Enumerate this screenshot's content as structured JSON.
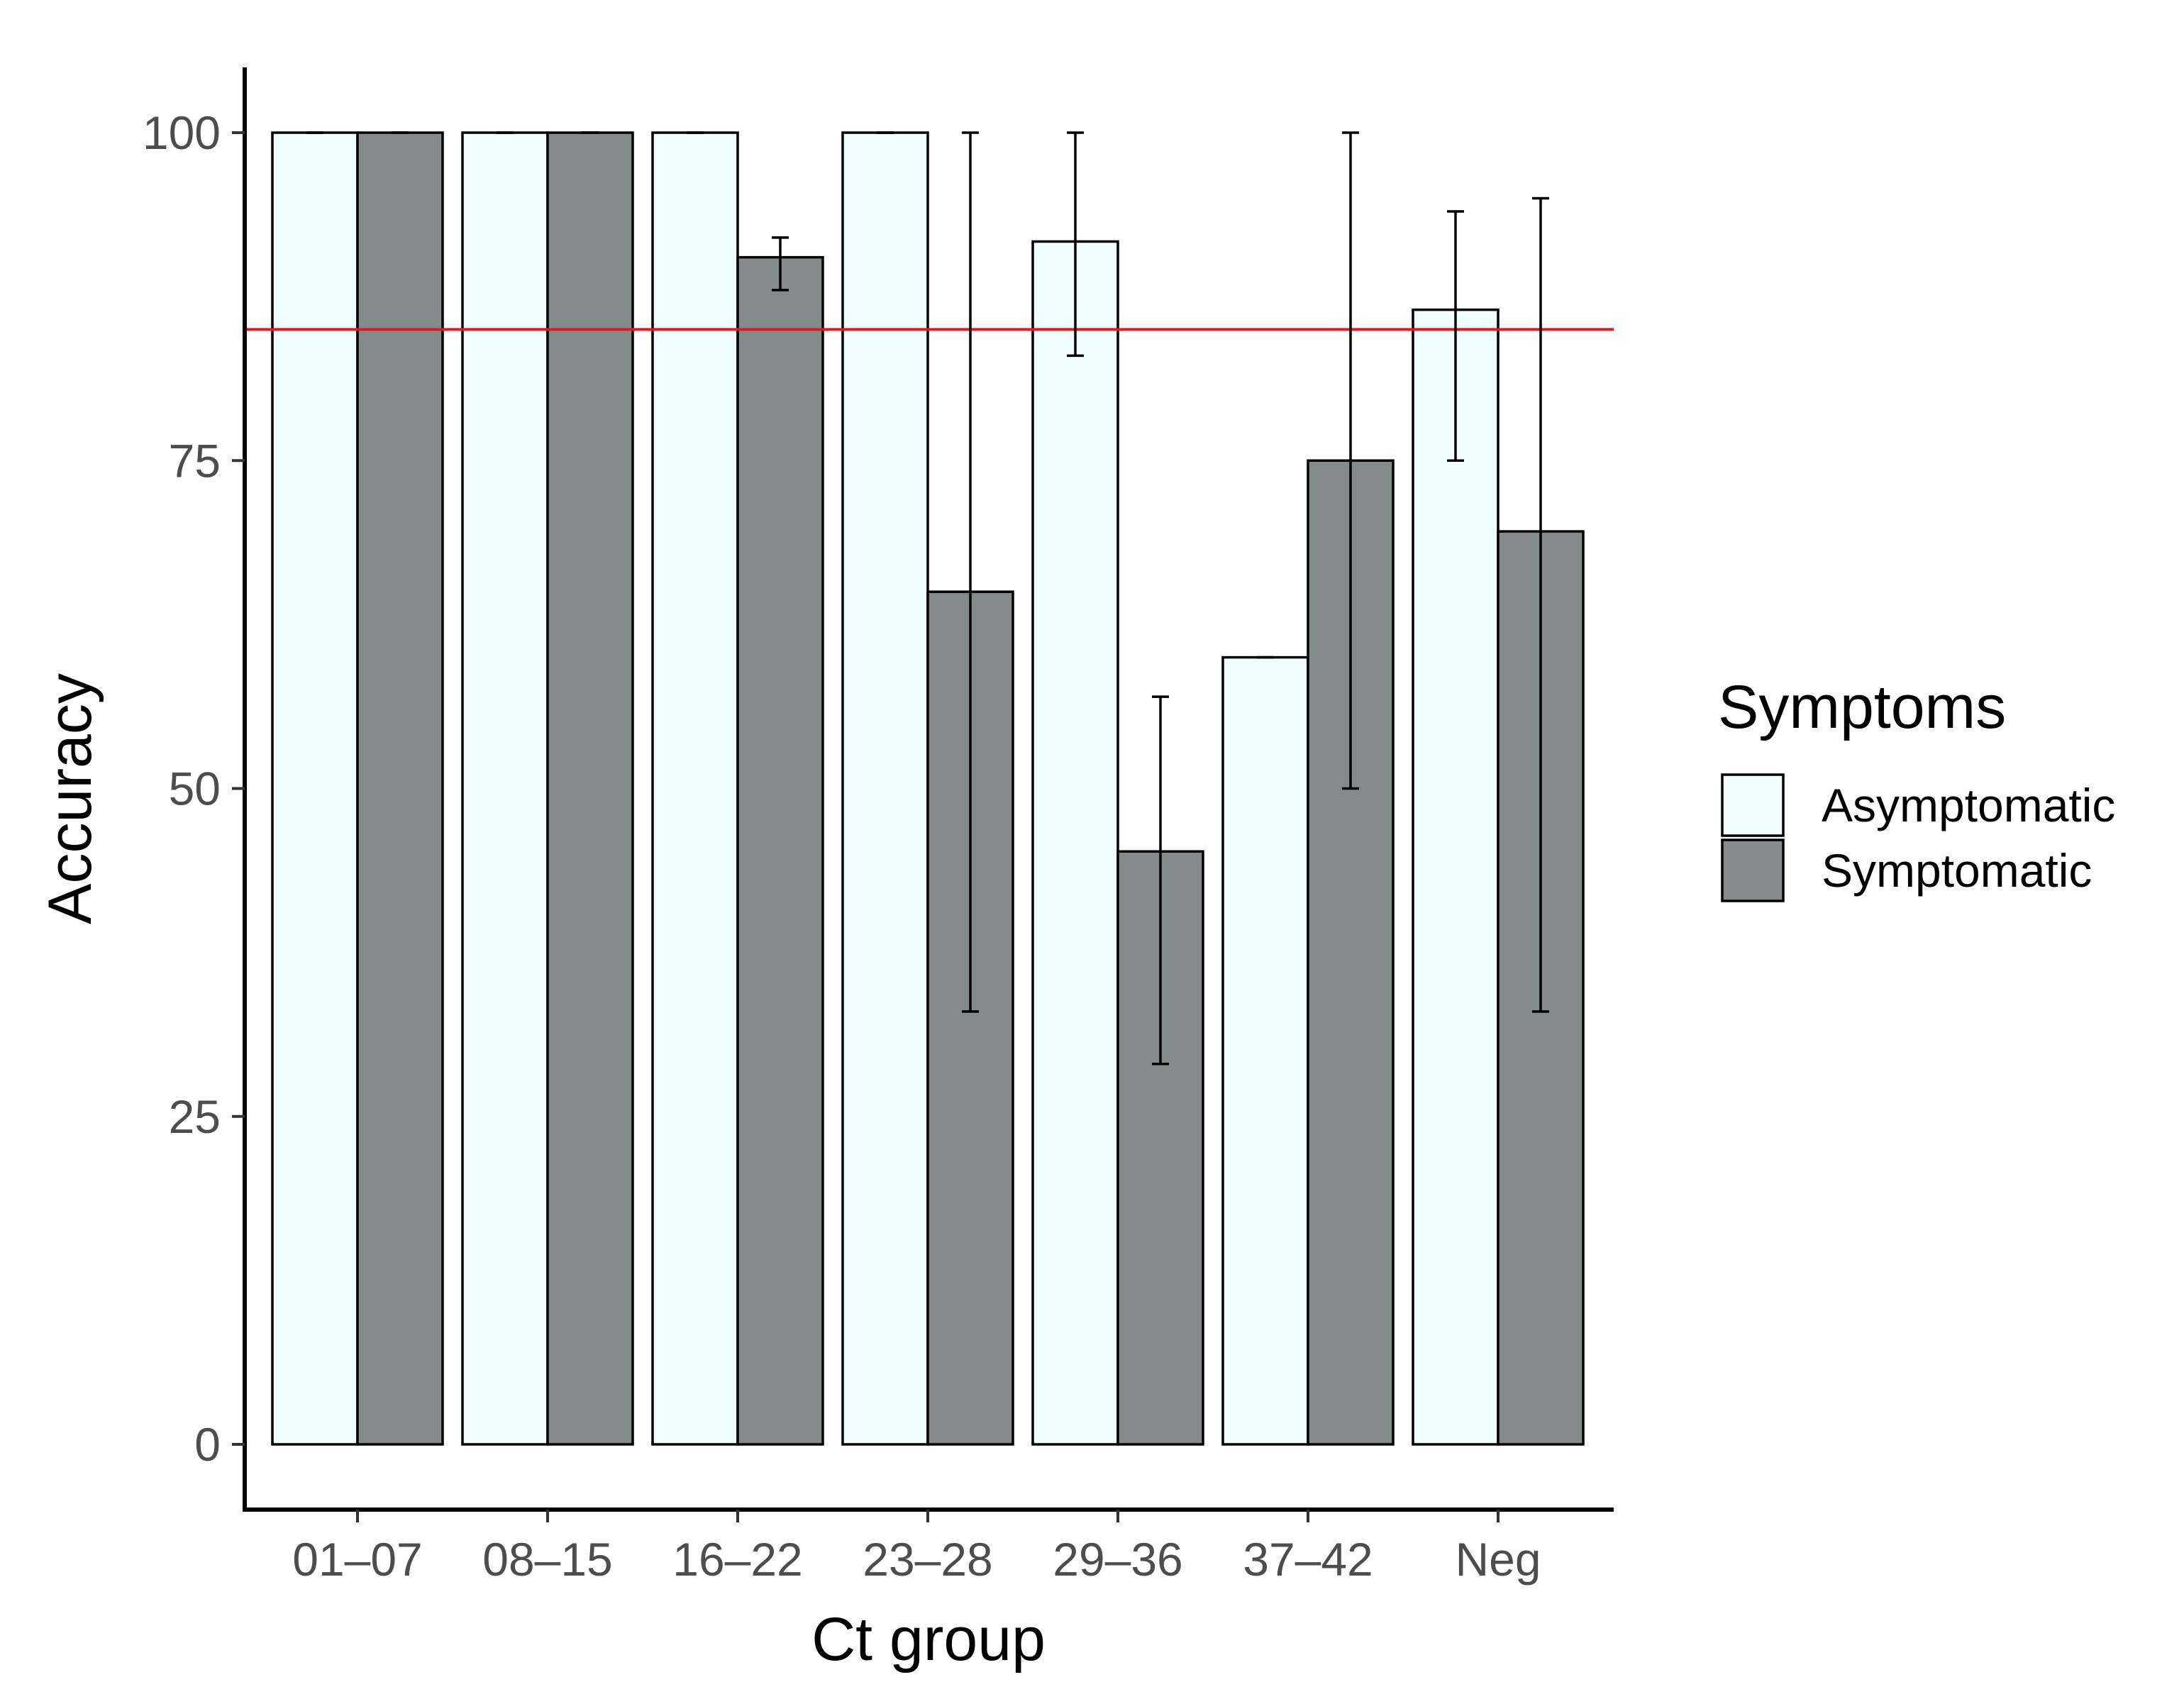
{
  "chart_data": {
    "type": "bar",
    "title": "",
    "xlabel": "Ct group",
    "ylabel": "Accuracy",
    "ylim": [
      -5,
      105
    ],
    "yticks": [
      0,
      25,
      50,
      75,
      100
    ],
    "grid": false,
    "legend_position": "right",
    "legend_title": "Symptoms",
    "categories": [
      "01–07",
      "08–15",
      "16–22",
      "23–28",
      "29–36",
      "37–42",
      "Neg"
    ],
    "series": [
      {
        "name": "Asymptomatic",
        "color": "#F0FFFF",
        "values": [
          100,
          100,
          100,
          100,
          91.7,
          60,
          86.5
        ],
        "error_low": [
          100,
          100,
          100,
          100,
          83,
          60,
          75
        ],
        "error_high": [
          100,
          100,
          100,
          100,
          100,
          60,
          94
        ]
      },
      {
        "name": "Symptomatic",
        "color": "#838B8B",
        "values": [
          100,
          100,
          90.5,
          65,
          45.2,
          75,
          69.6
        ],
        "error_low": [
          100,
          100,
          88,
          33,
          29,
          50,
          33
        ],
        "error_high": [
          100,
          100,
          92,
          100,
          57,
          100,
          95
        ]
      }
    ],
    "reference_line": {
      "y": 85,
      "color": "#E31A1C"
    },
    "bar_outline_color": "#000000"
  }
}
